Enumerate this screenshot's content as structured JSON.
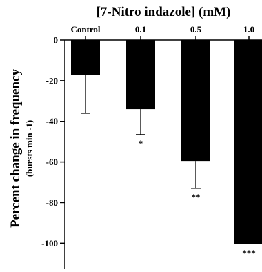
{
  "chart_data": {
    "type": "bar",
    "title": "[7-Nitro indazole] (mM)",
    "ylabel": "Percent change in frequency",
    "ylabel_unit": "(bursts min -1)",
    "categories": [
      "Control",
      "0.1",
      "0.5",
      "1.0"
    ],
    "values": [
      -17,
      -34,
      -59.5,
      -100.5
    ],
    "error_lower": [
      19,
      12.5,
      13.5,
      0
    ],
    "significance": [
      "",
      "*",
      "**",
      "***"
    ],
    "ylim": [
      -106,
      0
    ],
    "yticks": [
      0,
      -20,
      -40,
      -60,
      -80,
      -100
    ],
    "ytick_labels": [
      "0",
      "-20",
      "-40",
      "-60",
      "-80",
      "-100"
    ],
    "category_axis_position": "top",
    "bar_color": "#000000",
    "grid": false,
    "legend": "none"
  }
}
